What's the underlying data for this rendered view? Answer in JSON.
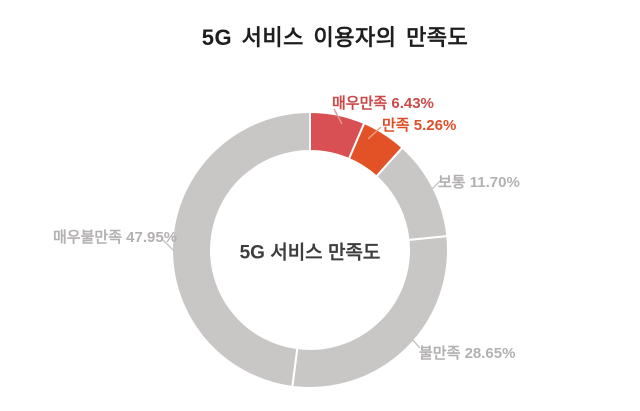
{
  "chart_data": {
    "type": "pie",
    "subtype": "donut",
    "title": "5G 서비스 이용자의 만족도",
    "center_label": "5G 서비스 만족도",
    "categories": [
      "매우만족",
      "만족",
      "보통",
      "불만족",
      "매우불만족"
    ],
    "values": [
      6.43,
      5.26,
      11.7,
      28.65,
      47.95
    ],
    "unit": "%",
    "labels": [
      "매우만족 6.43%",
      "만족 5.26%",
      "보통 11.70%",
      "불만족 28.65%",
      "매우불만족 47.95%"
    ],
    "slice_ids": [
      "very-satisfied",
      "satisfied",
      "neutral",
      "dissatisfied",
      "very-dissatisfied"
    ],
    "colors": [
      "#d85053",
      "#e35126",
      "#c9c6c6",
      "#c9c6c6",
      "#c9c6c6"
    ],
    "label_colors": [
      "#cc4949",
      "#dd4f27",
      "#b3b0b0",
      "#b3b0b0",
      "#b3b0b0"
    ],
    "leader_colors": [
      "#dc9c9c",
      "#e8a183",
      "#c7c4c4",
      "#c7c4c4",
      "#c7c4c4"
    ],
    "separator_color": "#ffffff",
    "background_color": "#ffffff",
    "start_angle_deg": 0,
    "direction": "clockwise",
    "inner_radius_ratio": 0.72,
    "legend": "none"
  }
}
